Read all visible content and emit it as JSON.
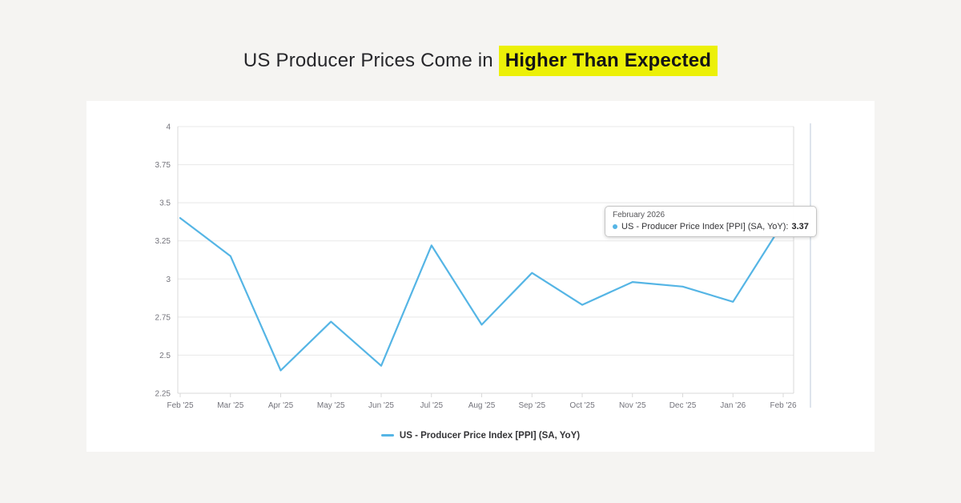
{
  "headline": {
    "prefix": "US Producer Prices Come in ",
    "highlight": "Higher Than Expected",
    "highlight_color": "#ecf008"
  },
  "chart_data": {
    "type": "line",
    "title": "",
    "xlabel": "",
    "ylabel": "",
    "categories": [
      "Feb '25",
      "Mar '25",
      "Apr '25",
      "May '25",
      "Jun '25",
      "Jul '25",
      "Aug '25",
      "Sep '25",
      "Oct '25",
      "Nov '25",
      "Dec '25",
      "Jan '26",
      "Feb '26"
    ],
    "series": [
      {
        "name": "US - Producer Price Index [PPI] (SA, YoY)",
        "values": [
          3.4,
          3.15,
          2.4,
          2.72,
          2.43,
          3.22,
          2.7,
          3.04,
          2.83,
          2.98,
          2.95,
          2.85,
          3.37
        ],
        "color": "#55b5e5"
      }
    ],
    "ylim": [
      2.25,
      4
    ],
    "y_ticks": [
      4,
      3.75,
      3.5,
      3.25,
      3,
      2.75,
      2.5,
      2.25
    ],
    "grid": true,
    "legend_position": "bottom",
    "colors": {
      "gridline": "#e8e8e8",
      "axis_line": "#d9d9d9",
      "tick_label": "#73737b",
      "scroll_line": "#d3dce5"
    }
  },
  "tooltip": {
    "header": "February 2026",
    "series_label": "US - Producer Price Index [PPI] (SA, YoY):",
    "value": "3.37",
    "marker_color": "#55b5e5"
  },
  "legend": {
    "label": "US - Producer Price Index [PPI] (SA, YoY)",
    "marker_color": "#55b5e5"
  }
}
